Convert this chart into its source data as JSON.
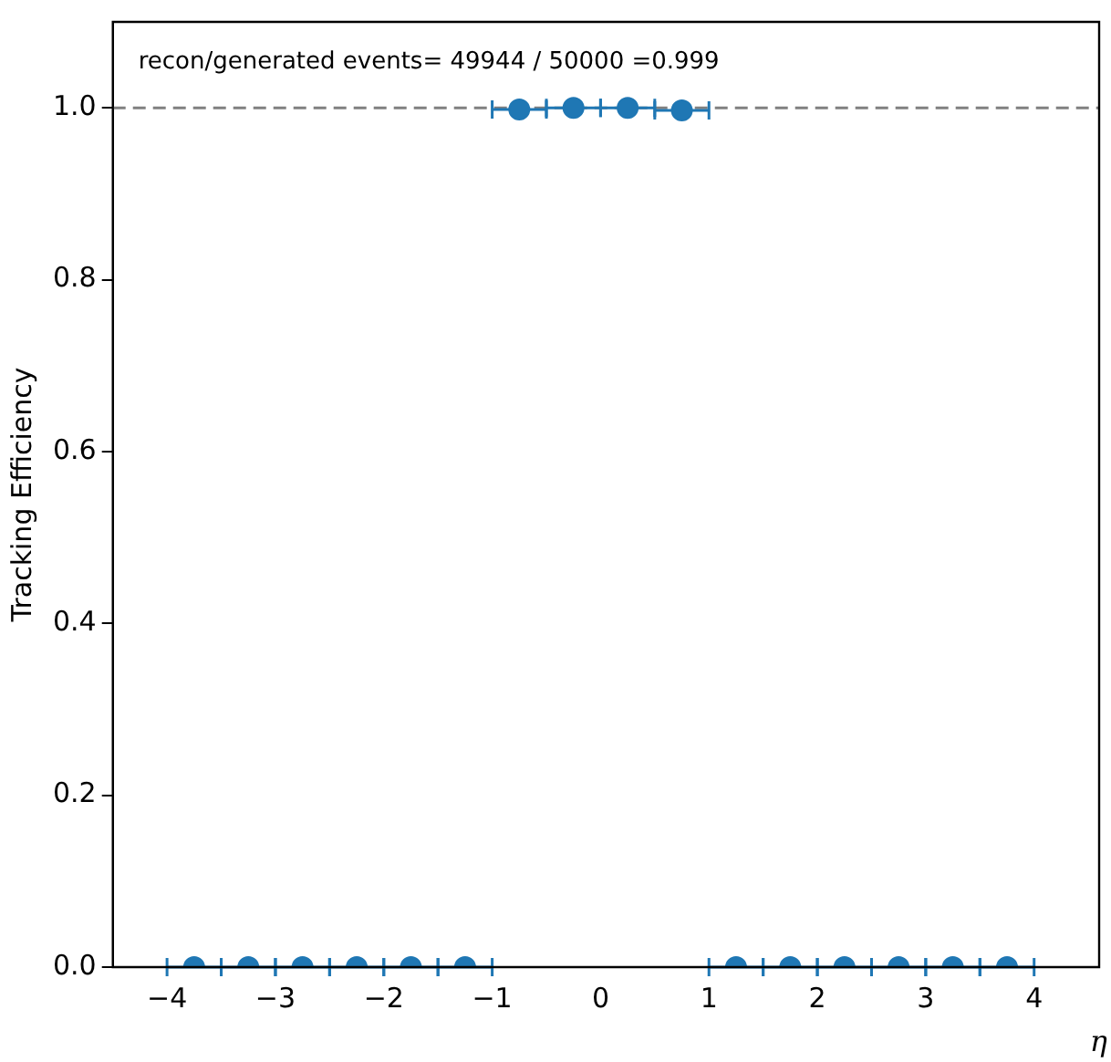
{
  "chart_data": {
    "type": "scatter",
    "xlabel": "η",
    "ylabel": "Tracking Efficiency",
    "annotations": [
      "recon/generated events= 49944 / 50000 =0.999"
    ],
    "x": [
      -3.75,
      -3.25,
      -2.75,
      -2.25,
      -1.75,
      -1.25,
      -0.75,
      -0.25,
      0.25,
      0.75,
      1.25,
      1.75,
      2.25,
      2.75,
      3.25,
      3.75
    ],
    "series": [
      {
        "color": "#1f77b4",
        "values": [
          0,
          0,
          0,
          0,
          0,
          0,
          0.998,
          1.0,
          1.0,
          0.997,
          0,
          0,
          0,
          0,
          0,
          0
        ],
        "xerrors": [
          0.25,
          0.25,
          0.25,
          0.25,
          0.25,
          0.25,
          0.25,
          0.25,
          0.25,
          0.25,
          0.25,
          0.25,
          0.25,
          0.25,
          0.25,
          0.25
        ]
      }
    ],
    "marker": "circle",
    "xlim": [
      -4.5,
      4.6
    ],
    "xticks": [
      {
        "value": -4,
        "label": "−4"
      },
      {
        "value": -3,
        "label": "−3"
      },
      {
        "value": -2,
        "label": "−2"
      },
      {
        "value": -1,
        "label": "−1"
      },
      0,
      1,
      2,
      3,
      4
    ],
    "ylim": [
      0,
      1.1
    ],
    "yticks": [
      {
        "value": 0,
        "label": "0.0"
      },
      0.2,
      0.4,
      0.6,
      0.8,
      {
        "value": 1,
        "label": "1.0"
      }
    ],
    "ref_lines": [
      {
        "axis": "y",
        "value": 1,
        "color": "#808080",
        "line_style": "dashed"
      }
    ],
    "grid": false,
    "legend": false
  }
}
